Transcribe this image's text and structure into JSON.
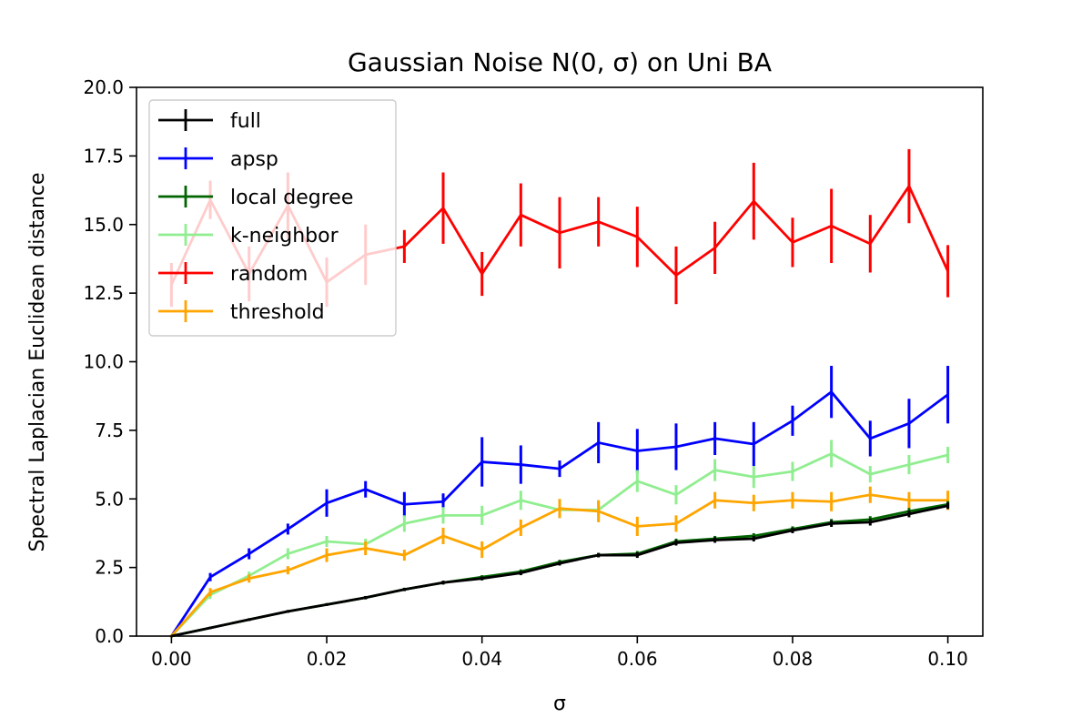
{
  "chart_data": {
    "type": "line",
    "title": "Gaussian Noise N(0, σ) on Uni BA",
    "xlabel": "σ",
    "ylabel": "Spectral Laplacian Euclidean distance",
    "xlim": [
      -0.0045,
      0.1045
    ],
    "ylim": [
      0,
      20
    ],
    "xticks": [
      0.0,
      0.02,
      0.04,
      0.06,
      0.08,
      0.1
    ],
    "xtick_labels": [
      "0.00",
      "0.02",
      "0.04",
      "0.06",
      "0.08",
      "0.10"
    ],
    "yticks": [
      0,
      2.5,
      5,
      7.5,
      10,
      12.5,
      15,
      17.5,
      20
    ],
    "ytick_labels": [
      "0.0",
      "2.5",
      "5.0",
      "7.5",
      "10.0",
      "12.5",
      "15.0",
      "17.5",
      "20.0"
    ],
    "grid": false,
    "legend_position": "upper-left",
    "x": [
      0.0,
      0.005,
      0.01,
      0.015,
      0.02,
      0.025,
      0.03,
      0.035,
      0.04,
      0.045,
      0.05,
      0.055,
      0.06,
      0.065,
      0.07,
      0.075,
      0.08,
      0.085,
      0.09,
      0.095,
      0.1
    ],
    "series": [
      {
        "name": "random",
        "color": "#ff0000",
        "values": [
          12.8,
          15.9,
          13.2,
          15.7,
          12.9,
          13.9,
          14.2,
          15.6,
          13.2,
          15.35,
          14.7,
          15.1,
          14.55,
          13.15,
          14.15,
          15.85,
          14.35,
          14.95,
          14.3,
          16.4,
          13.3
        ],
        "errors": [
          0.8,
          0.7,
          1.0,
          1.2,
          0.9,
          1.1,
          0.6,
          1.3,
          0.8,
          1.15,
          1.3,
          0.9,
          1.1,
          1.05,
          0.95,
          1.4,
          0.9,
          1.35,
          1.05,
          1.35,
          0.95
        ]
      },
      {
        "name": "apsp",
        "color": "#0000ff",
        "values": [
          0.0,
          2.15,
          3.0,
          3.9,
          4.85,
          5.35,
          4.8,
          4.9,
          6.35,
          6.25,
          6.1,
          7.05,
          6.75,
          6.9,
          7.2,
          7.0,
          7.85,
          8.9,
          7.2,
          7.75,
          8.8
        ],
        "errors": [
          0.05,
          0.15,
          0.2,
          0.2,
          0.5,
          0.3,
          0.45,
          0.3,
          0.9,
          0.7,
          0.3,
          0.75,
          0.8,
          0.85,
          0.6,
          0.8,
          0.55,
          0.95,
          0.65,
          0.9,
          1.05
        ]
      },
      {
        "name": "k-neighbor",
        "color": "#90ee90",
        "values": [
          0.0,
          1.5,
          2.2,
          3.0,
          3.45,
          3.35,
          4.1,
          4.4,
          4.4,
          4.95,
          4.6,
          4.6,
          5.65,
          5.15,
          6.05,
          5.8,
          6.0,
          6.65,
          5.9,
          6.25,
          6.6
        ],
        "errors": [
          0.05,
          0.15,
          0.15,
          0.2,
          0.2,
          0.2,
          0.3,
          0.3,
          0.35,
          0.35,
          0.3,
          0.35,
          0.4,
          0.35,
          0.4,
          0.4,
          0.35,
          0.5,
          0.3,
          0.35,
          0.3
        ]
      },
      {
        "name": "threshold",
        "color": "#ffa500",
        "values": [
          0.0,
          1.6,
          2.1,
          2.4,
          2.95,
          3.2,
          2.95,
          3.65,
          3.15,
          3.95,
          4.65,
          4.55,
          4.0,
          4.1,
          4.95,
          4.85,
          4.95,
          4.9,
          5.15,
          4.95,
          4.95
        ],
        "errors": [
          0.05,
          0.15,
          0.15,
          0.15,
          0.25,
          0.25,
          0.2,
          0.3,
          0.3,
          0.3,
          0.35,
          0.4,
          0.35,
          0.3,
          0.3,
          0.3,
          0.3,
          0.35,
          0.3,
          0.3,
          0.35
        ]
      },
      {
        "name": "local degree",
        "color": "#006400",
        "values": [
          0.0,
          0.3,
          0.6,
          0.9,
          1.15,
          1.4,
          1.7,
          1.95,
          2.15,
          2.35,
          2.7,
          2.95,
          3.0,
          3.45,
          3.55,
          3.65,
          3.9,
          4.15,
          4.25,
          4.55,
          4.8
        ],
        "errors": [
          0.02,
          0.04,
          0.05,
          0.05,
          0.05,
          0.06,
          0.06,
          0.07,
          0.07,
          0.08,
          0.08,
          0.08,
          0.1,
          0.1,
          0.1,
          0.1,
          0.1,
          0.12,
          0.12,
          0.12,
          0.12
        ]
      },
      {
        "name": "full",
        "color": "#000000",
        "values": [
          0.0,
          0.3,
          0.6,
          0.9,
          1.15,
          1.4,
          1.7,
          1.95,
          2.1,
          2.3,
          2.65,
          2.95,
          2.95,
          3.4,
          3.5,
          3.55,
          3.85,
          4.1,
          4.15,
          4.45,
          4.75
        ],
        "errors": [
          0.02,
          0.04,
          0.05,
          0.05,
          0.05,
          0.06,
          0.06,
          0.07,
          0.07,
          0.08,
          0.08,
          0.08,
          0.1,
          0.1,
          0.1,
          0.1,
          0.1,
          0.12,
          0.12,
          0.12,
          0.12
        ]
      }
    ],
    "legend_order": [
      "full",
      "apsp",
      "local degree",
      "k-neighbor",
      "random",
      "threshold"
    ]
  }
}
